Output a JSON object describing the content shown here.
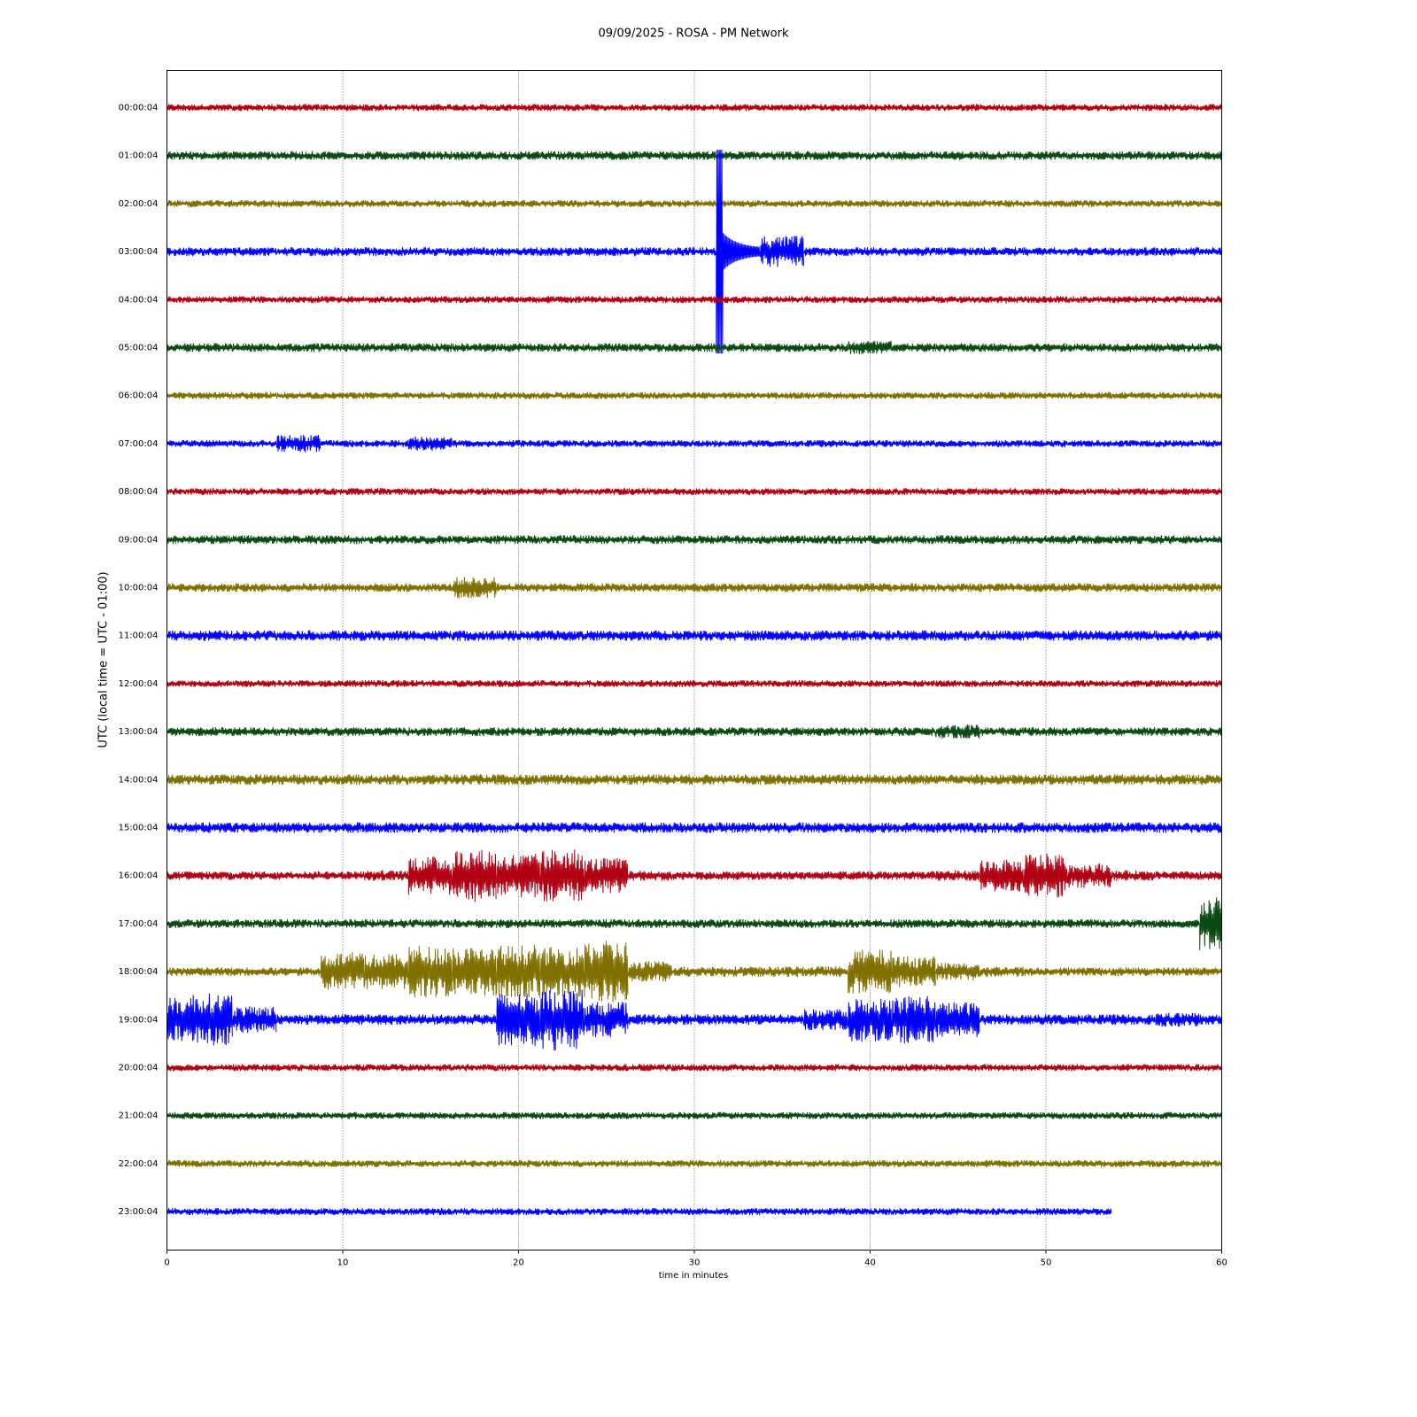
{
  "chart_data": {
    "type": "helicorder",
    "title": "09/09/2025 - ROSA - PM Network",
    "x_label": "time in minutes",
    "y_label": "UTC (local time = UTC - 01:00)",
    "xlim": [
      0,
      60
    ],
    "xticks": [
      0,
      10,
      20,
      30,
      40,
      50,
      60
    ],
    "grid": true,
    "x": [
      0,
      2.5,
      5,
      7.5,
      10,
      12.5,
      15,
      17.5,
      20,
      22.5,
      25,
      27.5,
      30,
      32.5,
      35,
      37.5,
      40,
      42.5,
      45,
      47.5,
      50,
      52.5,
      55,
      57.5,
      60
    ],
    "series": [
      {
        "name": "00:00:04",
        "color": "#b00012",
        "values": [
          4,
          4,
          4,
          4,
          4,
          4,
          4,
          4,
          4,
          4,
          4,
          4,
          4,
          4,
          4,
          4,
          4,
          4,
          4,
          4,
          4,
          4,
          4,
          4,
          4
        ]
      },
      {
        "name": "01:00:04",
        "color": "#0a4a12",
        "values": [
          5,
          5,
          5,
          5,
          5,
          5,
          5,
          5,
          5,
          5,
          5,
          5,
          5,
          5,
          5,
          5,
          5,
          5,
          5,
          5,
          5,
          5,
          5,
          5,
          5
        ]
      },
      {
        "name": "02:00:04",
        "color": "#7f7000",
        "values": [
          4,
          4,
          4,
          4,
          4,
          4,
          4,
          4,
          4,
          4,
          4,
          4,
          4,
          4,
          4,
          4,
          4,
          4,
          4,
          4,
          4,
          4,
          4,
          4,
          4
        ]
      },
      {
        "name": "03:00:04",
        "color": "#0000ff",
        "values": [
          5,
          5,
          5,
          5,
          5,
          5,
          5,
          5,
          5,
          5,
          5,
          5,
          5,
          115,
          18,
          5,
          5,
          5,
          5,
          5,
          5,
          5,
          5,
          5,
          5
        ]
      },
      {
        "name": "04:00:04",
        "color": "#b00012",
        "values": [
          4,
          4,
          4,
          4,
          4,
          4,
          4,
          4,
          4,
          4,
          4,
          4,
          4,
          4,
          4,
          4,
          4,
          4,
          4,
          4,
          4,
          4,
          4,
          4,
          4
        ]
      },
      {
        "name": "05:00:04",
        "color": "#0a4a12",
        "values": [
          5,
          5,
          5,
          5,
          5,
          5,
          5,
          5,
          5,
          5,
          5,
          5,
          5,
          5,
          5,
          5,
          8,
          5,
          5,
          5,
          5,
          5,
          5,
          5,
          5
        ]
      },
      {
        "name": "06:00:04",
        "color": "#7f7000",
        "values": [
          4,
          4,
          4,
          4,
          4,
          4,
          4,
          4,
          4,
          4,
          4,
          4,
          4,
          4,
          4,
          4,
          4,
          4,
          4,
          4,
          4,
          4,
          4,
          4,
          4
        ]
      },
      {
        "name": "07:00:04",
        "color": "#0000ff",
        "values": [
          4,
          4,
          4,
          10,
          4,
          4,
          8,
          4,
          4,
          4,
          4,
          4,
          4,
          4,
          4,
          4,
          4,
          4,
          4,
          4,
          4,
          4,
          4,
          4,
          4
        ]
      },
      {
        "name": "08:00:04",
        "color": "#b00012",
        "values": [
          4,
          4,
          4,
          4,
          4,
          4,
          4,
          4,
          4,
          4,
          4,
          4,
          4,
          4,
          4,
          4,
          4,
          4,
          4,
          4,
          4,
          4,
          4,
          4,
          4
        ]
      },
      {
        "name": "09:00:04",
        "color": "#0a4a12",
        "values": [
          5,
          5,
          5,
          5,
          5,
          5,
          5,
          5,
          5,
          5,
          5,
          5,
          5,
          5,
          5,
          5,
          5,
          5,
          5,
          5,
          5,
          5,
          5,
          5,
          5
        ]
      },
      {
        "name": "10:00:04",
        "color": "#7f7000",
        "values": [
          5,
          5,
          5,
          5,
          5,
          5,
          5,
          12,
          5,
          5,
          5,
          5,
          5,
          5,
          5,
          5,
          5,
          5,
          5,
          5,
          5,
          5,
          5,
          5,
          5
        ]
      },
      {
        "name": "11:00:04",
        "color": "#0000ff",
        "values": [
          6,
          6,
          6,
          6,
          6,
          6,
          6,
          6,
          6,
          6,
          6,
          6,
          6,
          6,
          6,
          6,
          6,
          6,
          6,
          6,
          6,
          6,
          6,
          6,
          6
        ]
      },
      {
        "name": "12:00:04",
        "color": "#b00012",
        "values": [
          4,
          4,
          4,
          4,
          4,
          4,
          4,
          4,
          4,
          4,
          4,
          4,
          4,
          4,
          4,
          4,
          4,
          4,
          4,
          4,
          4,
          4,
          4,
          4,
          4
        ]
      },
      {
        "name": "13:00:04",
        "color": "#0a4a12",
        "values": [
          5,
          5,
          5,
          5,
          5,
          5,
          5,
          5,
          5,
          5,
          5,
          5,
          5,
          5,
          5,
          5,
          5,
          5,
          8,
          5,
          5,
          5,
          5,
          5,
          5
        ]
      },
      {
        "name": "14:00:04",
        "color": "#7f7000",
        "values": [
          6,
          6,
          6,
          6,
          6,
          6,
          6,
          6,
          6,
          6,
          6,
          6,
          6,
          6,
          6,
          6,
          6,
          6,
          6,
          6,
          6,
          6,
          6,
          6,
          6
        ]
      },
      {
        "name": "15:00:04",
        "color": "#0000ff",
        "values": [
          6,
          6,
          6,
          6,
          6,
          6,
          6,
          6,
          6,
          6,
          6,
          6,
          6,
          6,
          6,
          6,
          6,
          6,
          6,
          6,
          6,
          6,
          6,
          6,
          6
        ]
      },
      {
        "name": "16:00:04",
        "color": "#b00012",
        "values": [
          5,
          5,
          5,
          5,
          5,
          6,
          22,
          30,
          25,
          30,
          20,
          6,
          5,
          5,
          5,
          5,
          5,
          5,
          6,
          18,
          25,
          14,
          6,
          5,
          5
        ]
      },
      {
        "name": "17:00:04",
        "color": "#0a4a12",
        "values": [
          5,
          5,
          5,
          5,
          5,
          5,
          5,
          5,
          5,
          5,
          5,
          5,
          5,
          5,
          5,
          5,
          5,
          5,
          5,
          5,
          5,
          5,
          5,
          5,
          30
        ]
      },
      {
        "name": "18:00:04",
        "color": "#7f7000",
        "values": [
          5,
          5,
          5,
          5,
          22,
          20,
          30,
          28,
          30,
          28,
          35,
          12,
          6,
          6,
          6,
          6,
          25,
          18,
          10,
          6,
          5,
          5,
          5,
          5,
          5
        ]
      },
      {
        "name": "19:00:04",
        "color": "#0000ff",
        "values": [
          25,
          30,
          15,
          6,
          6,
          6,
          6,
          6,
          30,
          35,
          20,
          6,
          6,
          6,
          6,
          12,
          25,
          28,
          20,
          6,
          6,
          6,
          6,
          8,
          6
        ]
      },
      {
        "name": "20:00:04",
        "color": "#b00012",
        "values": [
          4,
          4,
          4,
          4,
          4,
          4,
          4,
          4,
          4,
          4,
          4,
          4,
          4,
          4,
          4,
          4,
          4,
          4,
          4,
          4,
          4,
          4,
          4,
          4,
          4
        ]
      },
      {
        "name": "21:00:04",
        "color": "#0a4a12",
        "values": [
          4,
          4,
          4,
          4,
          4,
          4,
          4,
          4,
          4,
          4,
          4,
          4,
          4,
          4,
          4,
          4,
          4,
          4,
          4,
          4,
          4,
          4,
          4,
          4,
          4
        ]
      },
      {
        "name": "22:00:04",
        "color": "#7f7000",
        "values": [
          4,
          4,
          4,
          4,
          4,
          4,
          4,
          4,
          4,
          4,
          4,
          4,
          4,
          4,
          4,
          4,
          4,
          4,
          4,
          4,
          4,
          4,
          4,
          4,
          4
        ]
      },
      {
        "name": "23:00:04",
        "color": "#0000ff",
        "values": [
          4,
          4,
          4,
          4,
          4,
          4,
          4,
          4,
          4,
          4,
          4,
          4,
          4,
          4,
          4,
          4,
          4,
          4,
          4,
          4,
          4,
          4,
          null,
          null,
          null
        ]
      }
    ]
  }
}
